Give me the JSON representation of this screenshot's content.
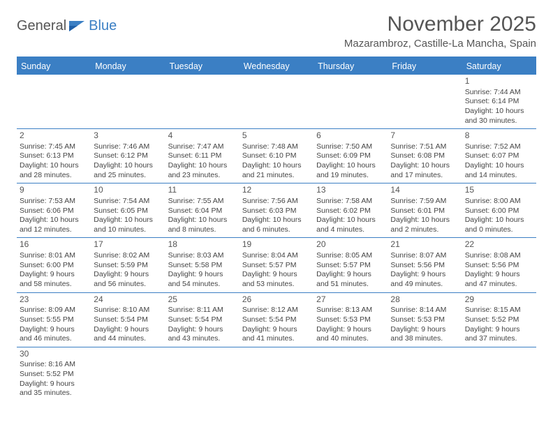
{
  "brand": {
    "part1": "General",
    "part2": "Blue"
  },
  "title": "November 2025",
  "subtitle": "Mazarambroz, Castille-La Mancha, Spain",
  "colors": {
    "accent": "#3b7fc4",
    "text": "#444",
    "muted": "#555"
  },
  "typography": {
    "title_fontsize": 30,
    "subtitle_fontsize": 15,
    "head_fontsize": 12.5,
    "cell_fontsize": 10.5
  },
  "dayheads": [
    "Sunday",
    "Monday",
    "Tuesday",
    "Wednesday",
    "Thursday",
    "Friday",
    "Saturday"
  ],
  "weeks": [
    [
      null,
      null,
      null,
      null,
      null,
      null,
      {
        "n": "1",
        "sr": "Sunrise: 7:44 AM",
        "ss": "Sunset: 6:14 PM",
        "d1": "Daylight: 10 hours",
        "d2": "and 30 minutes."
      }
    ],
    [
      {
        "n": "2",
        "sr": "Sunrise: 7:45 AM",
        "ss": "Sunset: 6:13 PM",
        "d1": "Daylight: 10 hours",
        "d2": "and 28 minutes."
      },
      {
        "n": "3",
        "sr": "Sunrise: 7:46 AM",
        "ss": "Sunset: 6:12 PM",
        "d1": "Daylight: 10 hours",
        "d2": "and 25 minutes."
      },
      {
        "n": "4",
        "sr": "Sunrise: 7:47 AM",
        "ss": "Sunset: 6:11 PM",
        "d1": "Daylight: 10 hours",
        "d2": "and 23 minutes."
      },
      {
        "n": "5",
        "sr": "Sunrise: 7:48 AM",
        "ss": "Sunset: 6:10 PM",
        "d1": "Daylight: 10 hours",
        "d2": "and 21 minutes."
      },
      {
        "n": "6",
        "sr": "Sunrise: 7:50 AM",
        "ss": "Sunset: 6:09 PM",
        "d1": "Daylight: 10 hours",
        "d2": "and 19 minutes."
      },
      {
        "n": "7",
        "sr": "Sunrise: 7:51 AM",
        "ss": "Sunset: 6:08 PM",
        "d1": "Daylight: 10 hours",
        "d2": "and 17 minutes."
      },
      {
        "n": "8",
        "sr": "Sunrise: 7:52 AM",
        "ss": "Sunset: 6:07 PM",
        "d1": "Daylight: 10 hours",
        "d2": "and 14 minutes."
      }
    ],
    [
      {
        "n": "9",
        "sr": "Sunrise: 7:53 AM",
        "ss": "Sunset: 6:06 PM",
        "d1": "Daylight: 10 hours",
        "d2": "and 12 minutes."
      },
      {
        "n": "10",
        "sr": "Sunrise: 7:54 AM",
        "ss": "Sunset: 6:05 PM",
        "d1": "Daylight: 10 hours",
        "d2": "and 10 minutes."
      },
      {
        "n": "11",
        "sr": "Sunrise: 7:55 AM",
        "ss": "Sunset: 6:04 PM",
        "d1": "Daylight: 10 hours",
        "d2": "and 8 minutes."
      },
      {
        "n": "12",
        "sr": "Sunrise: 7:56 AM",
        "ss": "Sunset: 6:03 PM",
        "d1": "Daylight: 10 hours",
        "d2": "and 6 minutes."
      },
      {
        "n": "13",
        "sr": "Sunrise: 7:58 AM",
        "ss": "Sunset: 6:02 PM",
        "d1": "Daylight: 10 hours",
        "d2": "and 4 minutes."
      },
      {
        "n": "14",
        "sr": "Sunrise: 7:59 AM",
        "ss": "Sunset: 6:01 PM",
        "d1": "Daylight: 10 hours",
        "d2": "and 2 minutes."
      },
      {
        "n": "15",
        "sr": "Sunrise: 8:00 AM",
        "ss": "Sunset: 6:00 PM",
        "d1": "Daylight: 10 hours",
        "d2": "and 0 minutes."
      }
    ],
    [
      {
        "n": "16",
        "sr": "Sunrise: 8:01 AM",
        "ss": "Sunset: 6:00 PM",
        "d1": "Daylight: 9 hours",
        "d2": "and 58 minutes."
      },
      {
        "n": "17",
        "sr": "Sunrise: 8:02 AM",
        "ss": "Sunset: 5:59 PM",
        "d1": "Daylight: 9 hours",
        "d2": "and 56 minutes."
      },
      {
        "n": "18",
        "sr": "Sunrise: 8:03 AM",
        "ss": "Sunset: 5:58 PM",
        "d1": "Daylight: 9 hours",
        "d2": "and 54 minutes."
      },
      {
        "n": "19",
        "sr": "Sunrise: 8:04 AM",
        "ss": "Sunset: 5:57 PM",
        "d1": "Daylight: 9 hours",
        "d2": "and 53 minutes."
      },
      {
        "n": "20",
        "sr": "Sunrise: 8:05 AM",
        "ss": "Sunset: 5:57 PM",
        "d1": "Daylight: 9 hours",
        "d2": "and 51 minutes."
      },
      {
        "n": "21",
        "sr": "Sunrise: 8:07 AM",
        "ss": "Sunset: 5:56 PM",
        "d1": "Daylight: 9 hours",
        "d2": "and 49 minutes."
      },
      {
        "n": "22",
        "sr": "Sunrise: 8:08 AM",
        "ss": "Sunset: 5:56 PM",
        "d1": "Daylight: 9 hours",
        "d2": "and 47 minutes."
      }
    ],
    [
      {
        "n": "23",
        "sr": "Sunrise: 8:09 AM",
        "ss": "Sunset: 5:55 PM",
        "d1": "Daylight: 9 hours",
        "d2": "and 46 minutes."
      },
      {
        "n": "24",
        "sr": "Sunrise: 8:10 AM",
        "ss": "Sunset: 5:54 PM",
        "d1": "Daylight: 9 hours",
        "d2": "and 44 minutes."
      },
      {
        "n": "25",
        "sr": "Sunrise: 8:11 AM",
        "ss": "Sunset: 5:54 PM",
        "d1": "Daylight: 9 hours",
        "d2": "and 43 minutes."
      },
      {
        "n": "26",
        "sr": "Sunrise: 8:12 AM",
        "ss": "Sunset: 5:54 PM",
        "d1": "Daylight: 9 hours",
        "d2": "and 41 minutes."
      },
      {
        "n": "27",
        "sr": "Sunrise: 8:13 AM",
        "ss": "Sunset: 5:53 PM",
        "d1": "Daylight: 9 hours",
        "d2": "and 40 minutes."
      },
      {
        "n": "28",
        "sr": "Sunrise: 8:14 AM",
        "ss": "Sunset: 5:53 PM",
        "d1": "Daylight: 9 hours",
        "d2": "and 38 minutes."
      },
      {
        "n": "29",
        "sr": "Sunrise: 8:15 AM",
        "ss": "Sunset: 5:52 PM",
        "d1": "Daylight: 9 hours",
        "d2": "and 37 minutes."
      }
    ],
    [
      {
        "n": "30",
        "sr": "Sunrise: 8:16 AM",
        "ss": "Sunset: 5:52 PM",
        "d1": "Daylight: 9 hours",
        "d2": "and 35 minutes."
      },
      null,
      null,
      null,
      null,
      null,
      null
    ]
  ]
}
